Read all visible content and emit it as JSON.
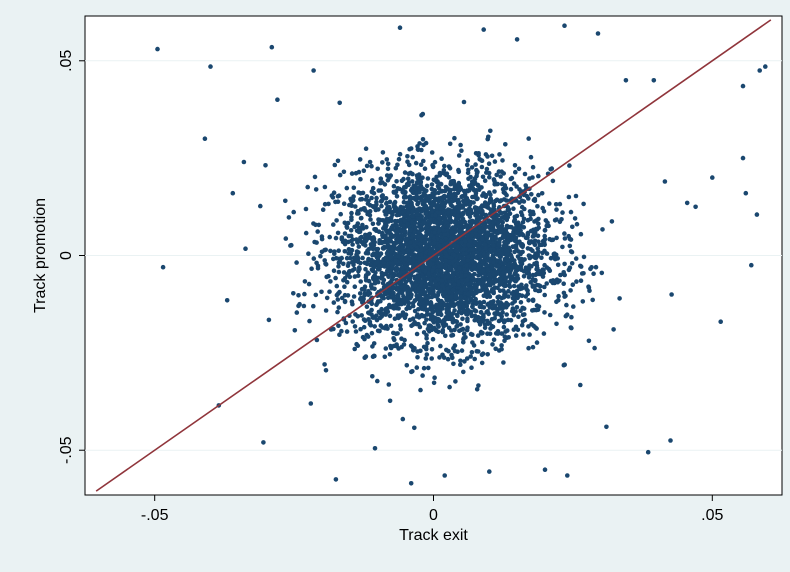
{
  "chart_data": {
    "type": "scatter",
    "title": "",
    "xlabel": "Track exit",
    "ylabel": "Track promotion",
    "xlim": [
      -0.0625,
      0.0625
    ],
    "ylim": [
      -0.0615,
      0.0615
    ],
    "xticks": [
      -0.05,
      0,
      0.05
    ],
    "xtick_labels": [
      "-.05",
      "0",
      ".05"
    ],
    "yticks": [
      -0.05,
      0,
      0.05
    ],
    "ytick_labels": [
      "-.05",
      "0",
      ".05"
    ],
    "grid": "horizontal",
    "legend": "none",
    "colors": {
      "points": "#1a476f",
      "line": "#90353b",
      "plot_bg": "#ffffff",
      "outer_bg": "#eaf2f3",
      "grid": "#eaf2f3"
    },
    "series": [
      {
        "kind": "points",
        "distribution": {
          "count": 4000,
          "center": [
            0.002,
            0.0
          ],
          "sd": [
            0.0095,
            0.011
          ]
        },
        "notable_points": [
          [
            -0.0495,
            0.053
          ],
          [
            -0.0485,
            -0.003
          ],
          [
            -0.04,
            0.0485
          ],
          [
            -0.041,
            0.03
          ],
          [
            -0.0385,
            -0.0385
          ],
          [
            -0.037,
            -0.0115
          ],
          [
            -0.036,
            0.016
          ],
          [
            -0.034,
            0.024
          ],
          [
            -0.0305,
            -0.048
          ],
          [
            -0.029,
            0.0535
          ],
          [
            -0.028,
            0.04
          ],
          [
            -0.022,
            -0.038
          ],
          [
            -0.0215,
            0.0475
          ],
          [
            -0.0175,
            -0.0575
          ],
          [
            -0.0105,
            -0.0495
          ],
          [
            -0.006,
            0.0585
          ],
          [
            -0.004,
            -0.0585
          ],
          [
            -0.0055,
            -0.042
          ],
          [
            0.002,
            -0.0565
          ],
          [
            0.009,
            0.058
          ],
          [
            0.01,
            -0.0555
          ],
          [
            0.015,
            0.0555
          ],
          [
            0.02,
            -0.055
          ],
          [
            0.0235,
            0.059
          ],
          [
            0.024,
            -0.0565
          ],
          [
            0.0295,
            0.057
          ],
          [
            0.031,
            -0.044
          ],
          [
            0.0345,
            0.045
          ],
          [
            0.0385,
            -0.0505
          ],
          [
            0.0395,
            0.045
          ],
          [
            0.0415,
            0.019
          ],
          [
            0.0425,
            -0.0475
          ],
          [
            0.0455,
            0.0135
          ],
          [
            0.047,
            0.0125
          ],
          [
            0.05,
            0.02
          ],
          [
            0.0515,
            -0.017
          ],
          [
            0.0555,
            0.0435
          ],
          [
            0.0555,
            0.025
          ],
          [
            0.056,
            0.016
          ],
          [
            0.057,
            -0.0025
          ],
          [
            0.058,
            0.0105
          ],
          [
            0.0585,
            0.0475
          ],
          [
            0.0595,
            0.0485
          ]
        ]
      },
      {
        "kind": "line",
        "x": [
          -0.0605,
          0.0605
        ],
        "y": [
          -0.0605,
          0.0605
        ]
      }
    ]
  }
}
